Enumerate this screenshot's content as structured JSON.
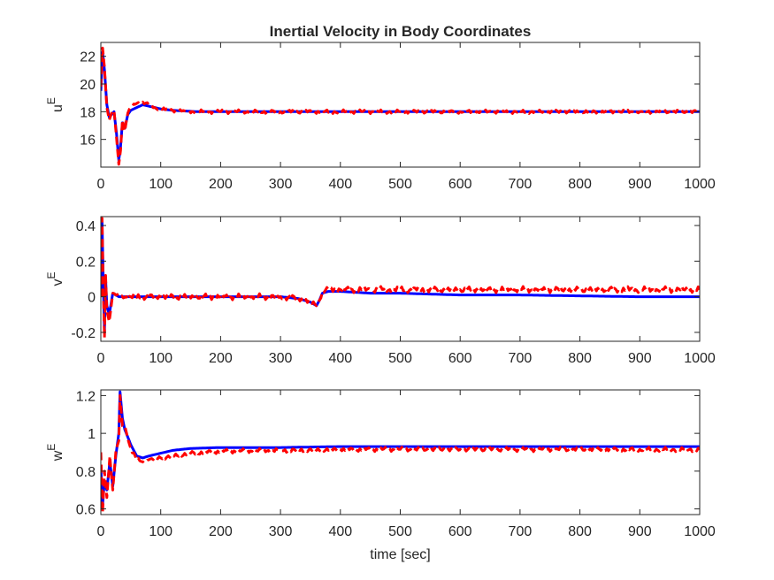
{
  "chart_data": [
    {
      "type": "line",
      "title": "Inertial Velocity in Body Coordinates",
      "ylabel": "u",
      "ylabel_sup": "E",
      "xlabel": "",
      "xlim": [
        0,
        1000
      ],
      "ylim": [
        14,
        23
      ],
      "xticks": [
        0,
        100,
        200,
        300,
        400,
        500,
        600,
        700,
        800,
        900,
        1000
      ],
      "yticks": [
        16,
        18,
        20,
        22
      ],
      "series": [
        {
          "color": "#0000ff",
          "style": "solid",
          "x": [
            0,
            3,
            6,
            10,
            14,
            18,
            22,
            26,
            30,
            33,
            36,
            40,
            45,
            50,
            60,
            70,
            80,
            90,
            100,
            120,
            140,
            160,
            200,
            300,
            400,
            500,
            600,
            700,
            800,
            900,
            1000
          ],
          "y": [
            19.5,
            22.3,
            21.0,
            18.5,
            17.6,
            17.8,
            18.0,
            16.5,
            14.5,
            15.5,
            17.2,
            16.8,
            17.8,
            18.1,
            18.3,
            18.5,
            18.4,
            18.3,
            18.2,
            18.1,
            18.05,
            18.0,
            18.0,
            18.0,
            18.0,
            18.0,
            18.0,
            18.0,
            18.0,
            18.0,
            18.0
          ]
        },
        {
          "color": "#ff0000",
          "style": "dashed",
          "x": [
            0,
            3,
            6,
            10,
            14,
            18,
            22,
            26,
            30,
            33,
            36,
            40,
            45,
            50,
            60,
            70,
            80,
            90,
            100,
            120,
            140,
            160,
            200,
            300,
            400,
            500,
            600,
            700,
            800,
            900,
            1000
          ],
          "y": [
            19.8,
            22.6,
            21.2,
            18.3,
            17.4,
            17.9,
            18.1,
            16.2,
            14.2,
            15.2,
            17.4,
            16.6,
            17.9,
            18.3,
            18.6,
            18.7,
            18.5,
            18.3,
            18.2,
            18.1,
            18.05,
            18.0,
            18.0,
            18.0,
            18.0,
            18.0,
            18.0,
            18.0,
            18.0,
            18.0,
            18.0
          ],
          "noise": 0.14
        }
      ]
    },
    {
      "type": "line",
      "title": "",
      "ylabel": "v",
      "ylabel_sup": "E",
      "xlabel": "",
      "xlim": [
        0,
        1000
      ],
      "ylim": [
        -0.25,
        0.45
      ],
      "xticks": [
        0,
        100,
        200,
        300,
        400,
        500,
        600,
        700,
        800,
        900,
        1000
      ],
      "yticks": [
        -0.2,
        0,
        0.2,
        0.4
      ],
      "series": [
        {
          "color": "#0000ff",
          "style": "solid",
          "x": [
            0,
            2,
            4,
            6,
            8,
            10,
            14,
            20,
            30,
            50,
            100,
            200,
            300,
            330,
            350,
            360,
            365,
            370,
            380,
            400,
            450,
            500,
            600,
            700,
            800,
            900,
            1000
          ],
          "y": [
            0.0,
            0.42,
            0.1,
            -0.2,
            0.1,
            -0.05,
            -0.1,
            0.02,
            0.0,
            0.0,
            0.0,
            0.0,
            0.0,
            -0.01,
            -0.03,
            -0.05,
            -0.02,
            0.02,
            0.03,
            0.03,
            0.02,
            0.02,
            0.01,
            0.01,
            0.005,
            0.0,
            0.0
          ]
        },
        {
          "color": "#ff0000",
          "style": "dashed",
          "x": [
            0,
            2,
            4,
            6,
            8,
            10,
            14,
            20,
            30,
            50,
            100,
            200,
            300,
            330,
            350,
            360,
            365,
            370,
            380,
            400,
            450,
            500,
            600,
            700,
            800,
            900,
            1000
          ],
          "y": [
            0.0,
            0.44,
            0.05,
            -0.23,
            0.12,
            -0.08,
            -0.14,
            0.02,
            0.0,
            0.0,
            0.0,
            0.0,
            0.0,
            -0.01,
            -0.03,
            -0.05,
            -0.02,
            0.03,
            0.04,
            0.04,
            0.04,
            0.04,
            0.04,
            0.04,
            0.04,
            0.04,
            0.04
          ],
          "noise": 0.018
        }
      ]
    },
    {
      "type": "line",
      "title": "",
      "ylabel": "w",
      "ylabel_sup": "E",
      "xlabel": "time [sec]",
      "xlim": [
        0,
        1000
      ],
      "ylim": [
        0.57,
        1.23
      ],
      "xticks": [
        0,
        100,
        200,
        300,
        400,
        500,
        600,
        700,
        800,
        900,
        1000
      ],
      "yticks": [
        0.6,
        0.8,
        1,
        1.2
      ],
      "series": [
        {
          "color": "#0000ff",
          "style": "solid",
          "x": [
            0,
            3,
            6,
            10,
            15,
            20,
            25,
            30,
            32,
            36,
            40,
            45,
            50,
            60,
            70,
            80,
            100,
            120,
            150,
            200,
            300,
            400,
            500,
            600,
            700,
            800,
            900,
            1000
          ],
          "y": [
            0.82,
            0.62,
            0.75,
            0.7,
            0.85,
            0.72,
            0.88,
            1.0,
            1.22,
            1.08,
            1.02,
            0.98,
            0.94,
            0.88,
            0.87,
            0.88,
            0.895,
            0.91,
            0.92,
            0.925,
            0.925,
            0.93,
            0.93,
            0.93,
            0.93,
            0.93,
            0.93,
            0.93
          ]
        },
        {
          "color": "#ff0000",
          "style": "dashed",
          "x": [
            0,
            3,
            6,
            10,
            15,
            20,
            25,
            30,
            32,
            36,
            40,
            45,
            50,
            60,
            70,
            80,
            100,
            120,
            150,
            200,
            300,
            400,
            500,
            600,
            700,
            800,
            900,
            1000
          ],
          "y": [
            0.9,
            0.58,
            0.8,
            0.66,
            0.88,
            0.7,
            0.9,
            0.96,
            1.2,
            1.04,
            1.04,
            0.97,
            0.92,
            0.86,
            0.85,
            0.86,
            0.87,
            0.88,
            0.895,
            0.905,
            0.91,
            0.915,
            0.915,
            0.915,
            0.915,
            0.915,
            0.915,
            0.915
          ],
          "noise": 0.012
        }
      ]
    }
  ]
}
